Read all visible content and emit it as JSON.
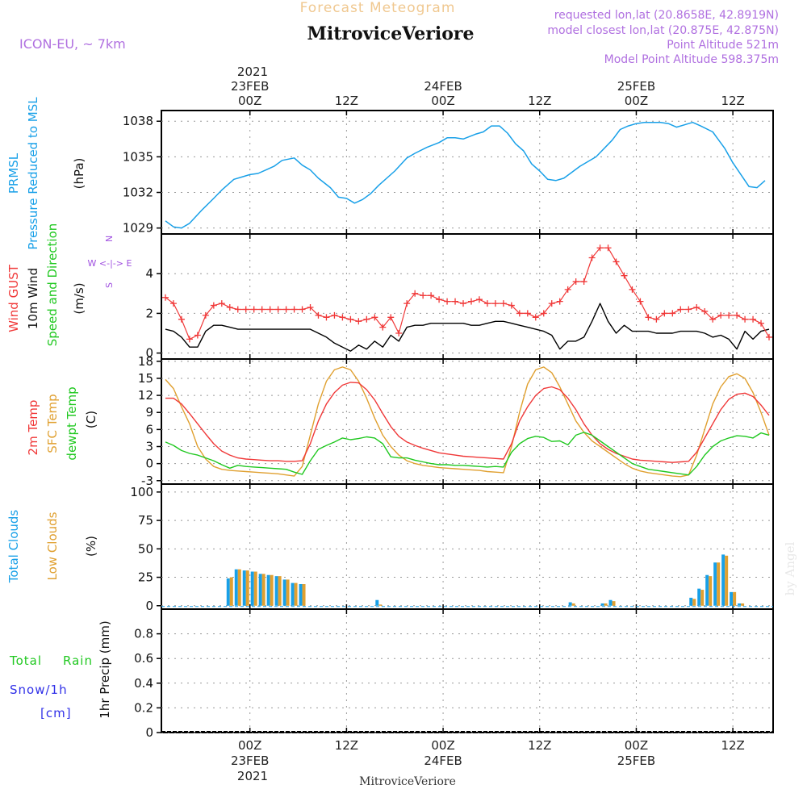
{
  "header": {
    "top_title": "Forecast Meteogram",
    "station_title": "MitroviceVeriore",
    "model_label": "ICON-EU, ~ 7km",
    "requested_label": "requested lon,lat (20.8658E, 42.8919N)",
    "closest_label": "model closest lon,lat (20.875E, 42.875N)",
    "point_alt_label": "Point Altitude 521m",
    "model_alt_label": "Model Point Altitude 598.375m",
    "footer_station": "MitroviceVeriore",
    "watermark": "by Angel"
  },
  "time_axis": {
    "top_year": "2021",
    "bottom_year": "2021",
    "ticks": [
      {
        "t": 0,
        "label": "00Z",
        "date": "23FEB"
      },
      {
        "t": 12,
        "label": "12Z",
        "date": ""
      },
      {
        "t": 24,
        "label": "00Z",
        "date": "24FEB"
      },
      {
        "t": 36,
        "label": "12Z",
        "date": ""
      },
      {
        "t": 48,
        "label": "00Z",
        "date": "25FEB"
      },
      {
        "t": 60,
        "label": "12Z",
        "date": ""
      }
    ],
    "range": [
      -11,
      65
    ]
  },
  "panel_labels": {
    "pressure": [
      "PRMSL",
      "Pressure Reduced to MSL",
      "(hPa)"
    ],
    "wind": [
      "Wind GUST",
      "10m Wind",
      "Speed and Direction",
      "(m/s)"
    ],
    "compass": [
      "N",
      "W <-|-> E",
      "S"
    ],
    "temp": [
      "2m Temp",
      "SFC Temp",
      "dewpt Temp",
      "(C)"
    ],
    "clouds": [
      "Total Clouds",
      "Low Clouds",
      "(%)"
    ],
    "precip": [
      "Total",
      "Rain",
      "Snow/1h",
      "[cm]",
      "1hr Precip (mm)"
    ]
  },
  "colors": {
    "pressure": "#18a0e8",
    "gust": "#f03838",
    "wind": "#000000",
    "total_cloud": "#18a0e8",
    "low_cloud": "#e0a030",
    "temp2m": "#f03838",
    "sfc": "#e0a030",
    "dew": "#20c820",
    "compass": "#a050e0",
    "rain": "#20c820",
    "snow": "#3030e8"
  },
  "chart_data": [
    {
      "type": "line",
      "name": "pressure",
      "ylim": [
        1028.5,
        1038.9
      ],
      "yticks": [
        1029,
        1032,
        1035,
        1038
      ],
      "x": [
        -10.5,
        -9.5,
        -8.5,
        -7.5,
        -6,
        -4.5,
        -3.5,
        -2,
        -1,
        0,
        1,
        2,
        3,
        4,
        5.5,
        6.5,
        7.5,
        8.5,
        10,
        11,
        12,
        13,
        14,
        15,
        16,
        18,
        19.5,
        20.5,
        22,
        23.5,
        24.5,
        25.5,
        26.5,
        28,
        29,
        30,
        31,
        32,
        33,
        34,
        35,
        36,
        37,
        38,
        39,
        40,
        41,
        43,
        45,
        46,
        47,
        48,
        49,
        50,
        51,
        52,
        53,
        54,
        55,
        56,
        57.5,
        59,
        60,
        61,
        62,
        63,
        64
      ],
      "values": [
        1029.6,
        1029.1,
        1029.0,
        1029.4,
        1030.5,
        1031.5,
        1032.2,
        1033.1,
        1033.3,
        1033.5,
        1033.6,
        1033.9,
        1034.2,
        1034.7,
        1034.9,
        1034.3,
        1033.9,
        1033.2,
        1032.4,
        1031.6,
        1031.5,
        1031.1,
        1031.4,
        1031.9,
        1032.6,
        1033.8,
        1034.9,
        1035.3,
        1035.8,
        1036.2,
        1036.6,
        1036.6,
        1036.5,
        1036.9,
        1037.1,
        1037.6,
        1037.6,
        1037.0,
        1036.1,
        1035.5,
        1034.4,
        1033.8,
        1033.1,
        1033.0,
        1033.2,
        1033.7,
        1034.2,
        1035.0,
        1036.4,
        1037.3,
        1037.6,
        1037.8,
        1037.9,
        1037.9,
        1037.9,
        1037.8,
        1037.5,
        1037.7,
        1037.9,
        1037.6,
        1037.1,
        1035.7,
        1034.5,
        1033.5,
        1032.5,
        1032.4,
        1033.0
      ]
    },
    {
      "type": "line",
      "name": "wind",
      "ylim": [
        -0.3,
        6.0
      ],
      "yticks": [
        0,
        2,
        4
      ],
      "x": [
        -10.5,
        -9.5,
        -8.5,
        -7.5,
        -6.5,
        -5.5,
        -4.5,
        -3.5,
        -2.5,
        -1.5,
        -0.5,
        0.5,
        1.5,
        2.5,
        3.5,
        4.5,
        5.5,
        6.5,
        7.5,
        8.5,
        9.5,
        10.5,
        11.5,
        12.5,
        13.5,
        14.5,
        15.5,
        16.5,
        17.5,
        18.5,
        19.5,
        20.5,
        21.5,
        22.5,
        23.5,
        24.5,
        25.5,
        26.5,
        27.5,
        28.5,
        29.5,
        30.5,
        31.5,
        32.5,
        33.5,
        34.5,
        35.5,
        36.5,
        37.5,
        38.5,
        39.5,
        40.5,
        41.5,
        42.5,
        43.5,
        44.5,
        45.5,
        46.5,
        47.5,
        48.5,
        49.5,
        50.5,
        51.5,
        52.5,
        53.5,
        54.5,
        55.5,
        56.5,
        57.5,
        58.5,
        59.5,
        60.5,
        61.5,
        62.5,
        63.5,
        64.5
      ],
      "gust": [
        2.8,
        2.5,
        1.7,
        0.7,
        0.9,
        1.9,
        2.4,
        2.5,
        2.3,
        2.2,
        2.2,
        2.2,
        2.2,
        2.2,
        2.2,
        2.2,
        2.2,
        2.2,
        2.3,
        1.9,
        1.8,
        1.9,
        1.8,
        1.7,
        1.6,
        1.7,
        1.8,
        1.3,
        1.8,
        1.0,
        2.5,
        3.0,
        2.9,
        2.9,
        2.7,
        2.6,
        2.6,
        2.5,
        2.6,
        2.7,
        2.5,
        2.5,
        2.5,
        2.4,
        2.0,
        2.0,
        1.8,
        2.0,
        2.5,
        2.6,
        3.2,
        3.6,
        3.6,
        4.8,
        5.3,
        5.3,
        4.6,
        3.9,
        3.2,
        2.6,
        1.8,
        1.7,
        2.0,
        2.0,
        2.2,
        2.2,
        2.3,
        2.1,
        1.7,
        1.9,
        1.9,
        1.9,
        1.7,
        1.7,
        1.5,
        0.8
      ],
      "values": [
        1.2,
        1.1,
        0.8,
        0.3,
        0.3,
        1.1,
        1.4,
        1.4,
        1.3,
        1.2,
        1.2,
        1.2,
        1.2,
        1.2,
        1.2,
        1.2,
        1.2,
        1.2,
        1.2,
        1.0,
        0.8,
        0.5,
        0.3,
        0.1,
        0.4,
        0.2,
        0.6,
        0.3,
        0.9,
        0.6,
        1.3,
        1.4,
        1.4,
        1.5,
        1.5,
        1.5,
        1.5,
        1.5,
        1.4,
        1.4,
        1.5,
        1.6,
        1.6,
        1.5,
        1.4,
        1.3,
        1.2,
        1.1,
        0.9,
        0.2,
        0.6,
        0.6,
        0.8,
        1.6,
        2.5,
        1.6,
        1.0,
        1.4,
        1.1,
        1.1,
        1.1,
        1.0,
        1.0,
        1.0,
        1.1,
        1.1,
        1.1,
        1.0,
        0.8,
        0.9,
        0.7,
        0.2,
        1.1,
        0.7,
        1.1,
        1.2
      ]
    },
    {
      "type": "line",
      "name": "temperature",
      "ylim": [
        -3.6,
        18.4
      ],
      "yticks": [
        -3,
        0,
        3,
        6,
        9,
        12,
        15,
        18
      ],
      "x": [
        -10.5,
        -9.5,
        -8.5,
        -7.5,
        -6.5,
        -5.5,
        -4.5,
        -3.5,
        -2.5,
        -1.5,
        -0.5,
        0.5,
        1.5,
        2.5,
        3.5,
        4.5,
        5.5,
        6.5,
        7.5,
        8.5,
        9.5,
        10.5,
        11.5,
        12.5,
        13.5,
        14.5,
        15.5,
        16.5,
        17.5,
        18.5,
        19.5,
        20.5,
        21.5,
        22.5,
        23.5,
        24.5,
        25.5,
        26.5,
        27.5,
        28.5,
        29.5,
        30.5,
        31.5,
        32.5,
        33.5,
        34.5,
        35.5,
        36.5,
        37.5,
        38.5,
        39.5,
        40.5,
        41.5,
        42.5,
        43.5,
        44.5,
        45.5,
        46.5,
        47.5,
        48.5,
        49.5,
        50.5,
        51.5,
        52.5,
        53.5,
        54.5,
        55.5,
        56.5,
        57.5,
        58.5,
        59.5,
        60.5,
        61.5,
        62.5,
        63.5,
        64.5
      ],
      "t2m": [
        11.5,
        11.5,
        10.5,
        8.8,
        7.0,
        5.2,
        3.5,
        2.2,
        1.5,
        1.0,
        0.8,
        0.7,
        0.6,
        0.5,
        0.5,
        0.4,
        0.4,
        0.5,
        3.5,
        7.5,
        10.5,
        12.5,
        13.8,
        14.3,
        14.2,
        13.0,
        11.2,
        8.8,
        6.5,
        4.8,
        3.8,
        3.2,
        2.7,
        2.3,
        1.9,
        1.7,
        1.5,
        1.3,
        1.2,
        1.1,
        1.0,
        0.9,
        0.8,
        3.5,
        7.5,
        10.0,
        12.0,
        13.2,
        13.5,
        13.0,
        11.5,
        9.5,
        7.0,
        5.0,
        3.5,
        2.5,
        1.8,
        1.3,
        0.8,
        0.6,
        0.5,
        0.4,
        0.3,
        0.2,
        0.3,
        0.4,
        2.0,
        4.5,
        7.0,
        9.5,
        11.3,
        12.2,
        12.4,
        11.8,
        10.3,
        8.5
      ],
      "sfc": [
        14.8,
        13.2,
        10.0,
        7.0,
        3.0,
        0.8,
        -0.5,
        -1.0,
        -1.2,
        -1.3,
        -1.4,
        -1.5,
        -1.6,
        -1.7,
        -1.8,
        -2.0,
        -2.2,
        -0.5,
        5.0,
        10.5,
        14.5,
        16.5,
        17.0,
        16.5,
        14.5,
        11.5,
        8.0,
        5.0,
        3.0,
        1.5,
        0.5,
        0.0,
        -0.3,
        -0.5,
        -0.7,
        -0.8,
        -0.9,
        -1.0,
        -1.1,
        -1.2,
        -1.4,
        -1.5,
        -1.6,
        3.0,
        9.0,
        14.0,
        16.5,
        17.0,
        16.0,
        13.5,
        10.5,
        7.5,
        5.5,
        4.0,
        3.0,
        2.0,
        1.0,
        0.0,
        -0.8,
        -1.3,
        -1.6,
        -1.8,
        -2.0,
        -2.2,
        -2.3,
        -2.0,
        1.5,
        6.0,
        10.5,
        13.5,
        15.3,
        15.8,
        15.0,
        12.5,
        9.0,
        5.0
      ],
      "dew": [
        3.8,
        3.2,
        2.3,
        1.8,
        1.5,
        1.0,
        0.5,
        -0.2,
        -0.8,
        -0.3,
        -0.5,
        -0.6,
        -0.7,
        -0.8,
        -0.9,
        -1.0,
        -1.5,
        -1.9,
        0.5,
        2.5,
        3.2,
        3.8,
        4.5,
        4.2,
        4.4,
        4.7,
        4.5,
        3.5,
        1.2,
        1.0,
        1.0,
        0.6,
        0.3,
        0.0,
        -0.2,
        -0.2,
        -0.3,
        -0.3,
        -0.4,
        -0.5,
        -0.6,
        -0.5,
        -0.6,
        2.0,
        3.5,
        4.4,
        4.8,
        4.6,
        3.9,
        4.0,
        3.3,
        5.0,
        5.5,
        5.0,
        4.0,
        3.0,
        2.0,
        1.0,
        0.0,
        -0.5,
        -1.0,
        -1.2,
        -1.4,
        -1.6,
        -1.8,
        -2.0,
        -0.5,
        1.5,
        3.0,
        4.0,
        4.5,
        4.9,
        4.8,
        4.5,
        5.4,
        5.0
      ]
    },
    {
      "type": "bar",
      "name": "clouds",
      "ylim": [
        -3,
        107
      ],
      "yticks": [
        0,
        25,
        50,
        75,
        100
      ],
      "x": [
        -2.5,
        -1.5,
        -0.5,
        0.5,
        1.5,
        2.5,
        3.5,
        4.5,
        5.5,
        6.5,
        16,
        40,
        44,
        45,
        55,
        56,
        57,
        58,
        59,
        60,
        61
      ],
      "total": [
        24,
        32,
        31,
        30,
        28,
        27,
        26,
        23,
        20,
        19,
        5,
        3,
        2,
        5,
        7,
        15,
        27,
        38,
        45,
        12,
        2
      ],
      "low": [
        25,
        32,
        31,
        30,
        28,
        27,
        26,
        23,
        20,
        19,
        1,
        2,
        2,
        4,
        6,
        14,
        26,
        38,
        44,
        12,
        2
      ]
    },
    {
      "type": "line",
      "name": "precipitation",
      "ylim": [
        0,
        1.0
      ],
      "yticks": [
        0,
        0.2,
        0.4,
        0.6,
        0.8
      ],
      "x": [
        -10.5,
        64.5
      ],
      "values": [
        0,
        0
      ]
    }
  ]
}
